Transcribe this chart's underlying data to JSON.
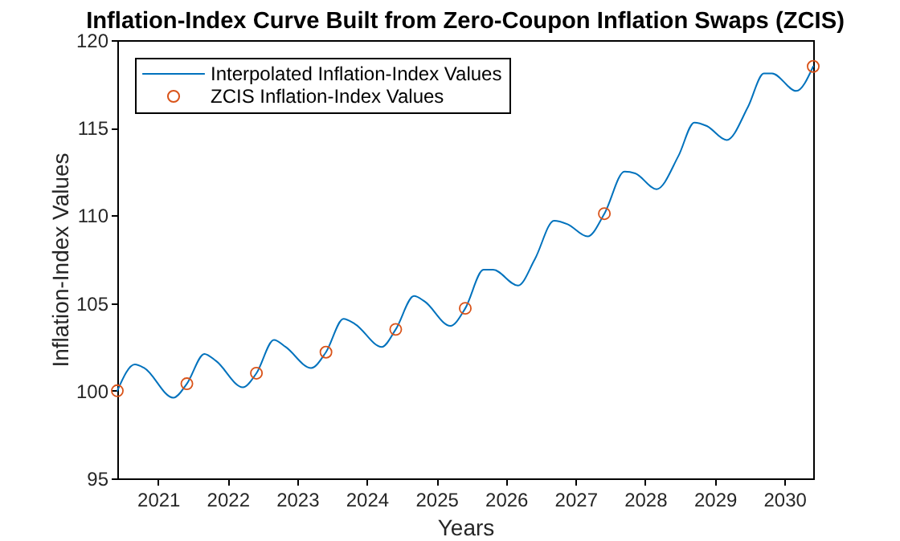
{
  "chart_data": {
    "type": "line",
    "title": "Inflation-Index Curve Built from Zero-Coupon Inflation Swaps (ZCIS)",
    "xlabel": "Years",
    "ylabel": "Inflation-Index Values",
    "xlim": [
      "2020-06-01",
      "2030-06-01"
    ],
    "xticks": [
      "2021",
      "2022",
      "2023",
      "2024",
      "2025",
      "2026",
      "2027",
      "2028",
      "2029",
      "2030"
    ],
    "ylim": [
      95,
      120
    ],
    "yticks": [
      95,
      100,
      105,
      110,
      115,
      120
    ],
    "grid": false,
    "legend": "top left",
    "series": [
      {
        "name": "Interpolated Inflation-Index Values",
        "color": "#0072bd",
        "line_style": "solid",
        "x": [
          "2020-06-01",
          "2020-09-01",
          "2020-10-20",
          "2021-03-22",
          "2021-06-01",
          "2021-09-01",
          "2021-11-01",
          "2022-03-22",
          "2022-06-01",
          "2022-09-01",
          "2022-11-01",
          "2023-03-15",
          "2023-06-01",
          "2023-09-01",
          "2023-11-01",
          "2024-03-20",
          "2024-06-01",
          "2024-09-05",
          "2024-10-30",
          "2025-03-15",
          "2025-06-01",
          "2025-09-05",
          "2025-10-25",
          "2026-03-05",
          "2026-06-01",
          "2026-09-10",
          "2026-11-20",
          "2027-03-05",
          "2027-06-01",
          "2027-09-15",
          "2027-11-10",
          "2028-03-01",
          "2028-06-24",
          "2028-09-15",
          "2028-11-20",
          "2029-03-04",
          "2029-06-24",
          "2029-09-15",
          "2029-10-28",
          "2030-03-04",
          "2030-06-01"
        ],
        "values": [
          100.0,
          101.5,
          101.3,
          99.6,
          100.4,
          102.1,
          101.7,
          100.2,
          101.0,
          102.9,
          102.5,
          101.3,
          102.2,
          104.1,
          103.8,
          102.5,
          103.5,
          105.4,
          105.1,
          103.7,
          104.7,
          106.9,
          106.9,
          106.0,
          107.5,
          109.7,
          109.5,
          108.8,
          110.1,
          112.5,
          112.4,
          111.5,
          113.4,
          115.3,
          115.1,
          114.3,
          116.2,
          118.1,
          118.1,
          117.1,
          118.5
        ]
      },
      {
        "name": "ZCIS Inflation-Index Values",
        "type": "scatter",
        "marker": "circle",
        "color": "#d95319",
        "x": [
          "2020-06-01",
          "2021-06-01",
          "2022-06-01",
          "2023-06-01",
          "2024-06-01",
          "2025-06-01",
          "2027-06-01",
          "2030-06-01"
        ],
        "values": [
          100.0,
          100.4,
          101.0,
          102.2,
          103.5,
          104.7,
          110.1,
          118.5
        ]
      }
    ]
  }
}
